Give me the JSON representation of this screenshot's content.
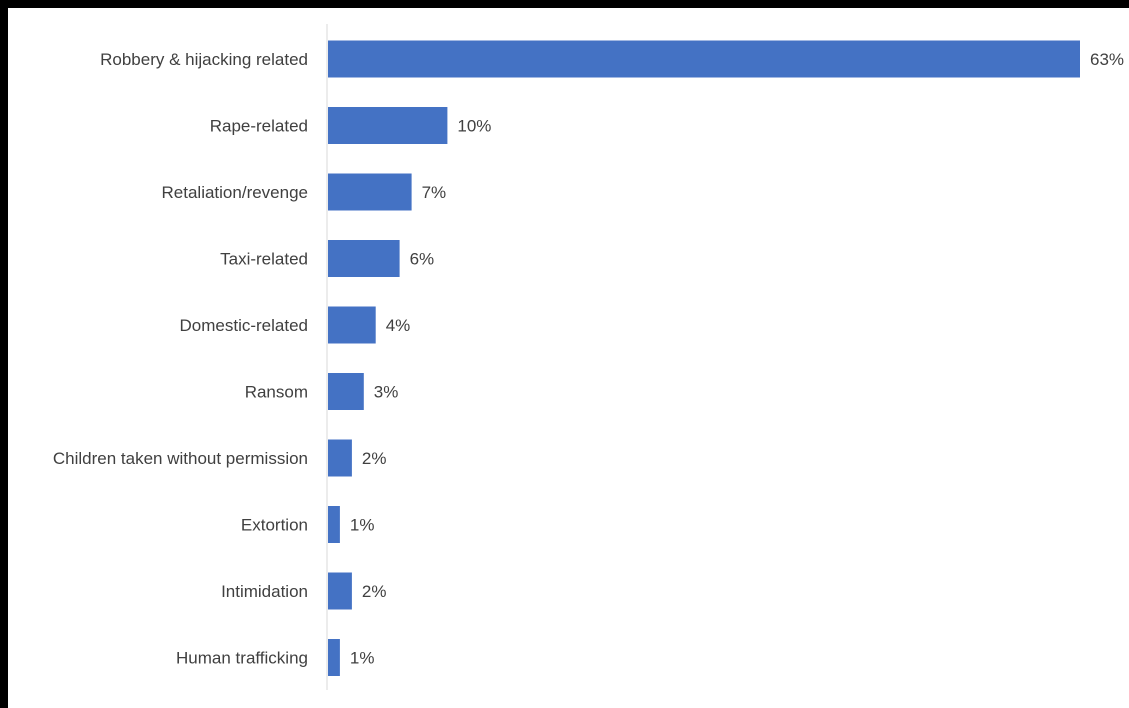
{
  "chart_data": {
    "type": "bar",
    "orientation": "horizontal",
    "title": "",
    "xlabel": "",
    "ylabel": "",
    "grid": false,
    "legend": "none",
    "bar_color": "#4472C4",
    "categories": [
      "Robbery & hijacking related",
      "Rape-related",
      "Retaliation/revenge",
      "Taxi-related",
      "Domestic-related",
      "Ransom",
      "Children taken without permission",
      "Extortion",
      "Intimidation",
      "Human trafficking"
    ],
    "values": [
      63,
      10,
      7,
      6,
      4,
      3,
      2,
      1,
      2,
      1
    ],
    "data_labels": [
      "63%",
      "10%",
      "7%",
      "6%",
      "4%",
      "3%",
      "2%",
      "1%",
      "2%",
      "1%"
    ],
    "value_unit": "%"
  }
}
